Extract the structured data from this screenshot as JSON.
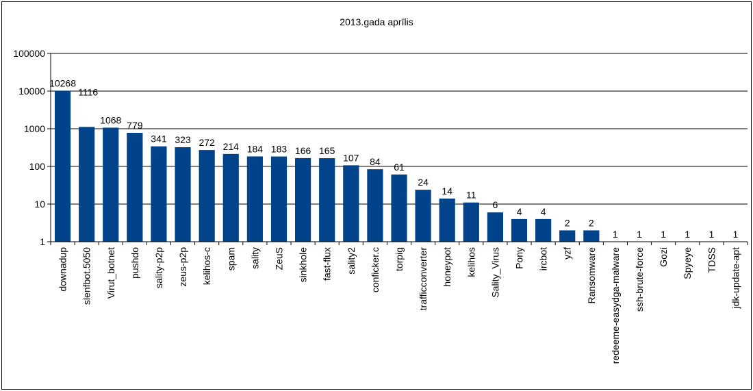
{
  "chart_data": {
    "type": "bar",
    "title": "2013.gada aprīlis",
    "xlabel": "",
    "ylabel": "",
    "yscale": "log",
    "ylim": [
      1,
      100000
    ],
    "yticks": [
      "1",
      "10",
      "100",
      "1000",
      "10000",
      "100000"
    ],
    "grid": true,
    "bar_color": "#00438A",
    "categories": [
      "downadup",
      "slenfbot.5050",
      "Virut_botnet",
      "pushdo",
      "sality-p2p",
      "zeus-p2p",
      "kelihos-c",
      "spam",
      "sality",
      "ZeuS",
      "sinkhole",
      "fast-flux",
      "sality2",
      "conficker.c",
      "torpig",
      "trafficconverter",
      "honeypot",
      "kelihos",
      "Sality_Virus",
      "Pony",
      "ircbot",
      "yzf",
      "Ransomware",
      "redeeme-easydga-malware",
      "ssh-brute-force",
      "Gozi",
      "Spyeye",
      "TDSS",
      "jdk-update-apt"
    ],
    "values": [
      10268,
      1116,
      1068,
      779,
      341,
      323,
      272,
      214,
      184,
      183,
      166,
      165,
      107,
      84,
      61,
      24,
      14,
      11,
      6,
      4,
      4,
      2,
      2,
      1,
      1,
      1,
      1,
      1,
      1
    ]
  }
}
